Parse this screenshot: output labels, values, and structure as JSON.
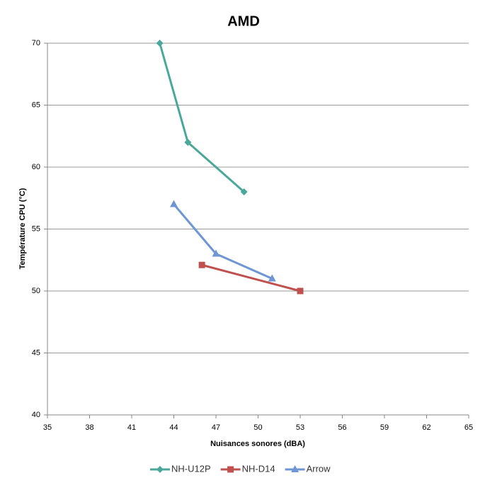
{
  "chart_data": {
    "type": "line",
    "title": "AMD",
    "x_label": "Nuisances sonores (dBA)",
    "y_label": "Température CPU (°C)",
    "xlim": [
      35,
      65
    ],
    "xticks": [
      35,
      38,
      41,
      44,
      47,
      50,
      53,
      56,
      59,
      62,
      65
    ],
    "ylim": [
      40,
      70
    ],
    "yticks": [
      40,
      45,
      50,
      55,
      60,
      65,
      70
    ],
    "grid": true,
    "legend": "bottom",
    "series": [
      {
        "name": "NH-U12P",
        "color": "#4aa89a",
        "marker": "diamond",
        "x": [
          43,
          45,
          49
        ],
        "values": [
          70,
          62,
          58
        ]
      },
      {
        "name": "NH-D14",
        "color": "#c0504d",
        "marker": "square",
        "x": [
          46,
          53
        ],
        "values": [
          52.1,
          50
        ]
      },
      {
        "name": "Arrow",
        "color": "#6f96d4",
        "marker": "triangle",
        "x": [
          44,
          47,
          51
        ],
        "values": [
          57,
          53,
          51
        ]
      }
    ]
  }
}
